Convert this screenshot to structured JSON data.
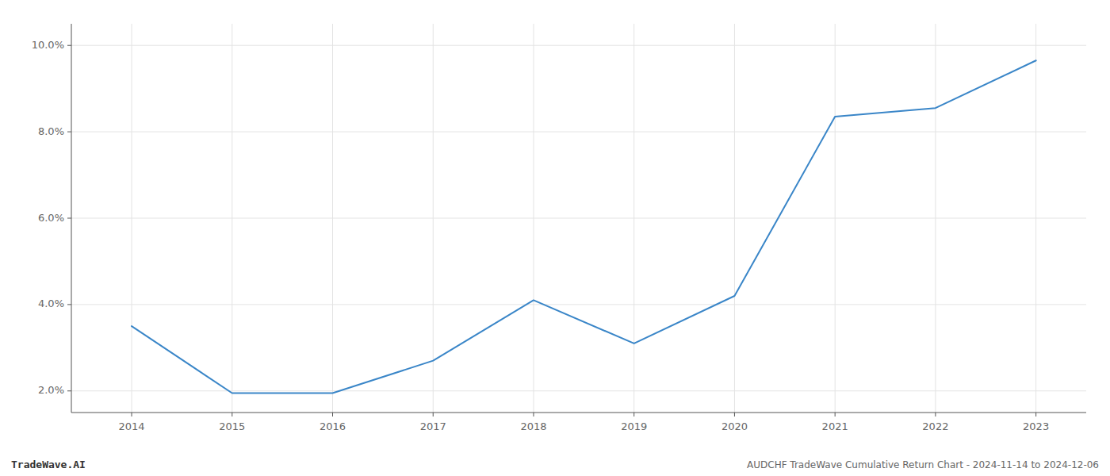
{
  "chart_data": {
    "type": "line",
    "x": [
      2014,
      2015,
      2016,
      2017,
      2018,
      2019,
      2020,
      2021,
      2022,
      2023
    ],
    "values": [
      3.5,
      1.95,
      1.95,
      2.7,
      4.1,
      3.1,
      4.2,
      8.35,
      8.55,
      9.65
    ],
    "color": "#3a86c8",
    "xlim": [
      2013.4,
      2023.5
    ],
    "xticks": [
      2014,
      2015,
      2016,
      2017,
      2018,
      2019,
      2020,
      2021,
      2022,
      2023
    ],
    "ylim": [
      1.5,
      10.5
    ],
    "yticks": [
      {
        "value": 2.0,
        "label": "2.0%"
      },
      {
        "value": 4.0,
        "label": "4.0%"
      },
      {
        "value": 6.0,
        "label": "6.0%"
      },
      {
        "value": 8.0,
        "label": "8.0%"
      },
      {
        "value": 10.0,
        "label": "10.0%"
      }
    ],
    "grid": true,
    "annotations": [
      "TradeWave.AI",
      "AUDCHF TradeWave Cumulative Return Chart - 2024-11-14 to 2024-12-06"
    ]
  }
}
